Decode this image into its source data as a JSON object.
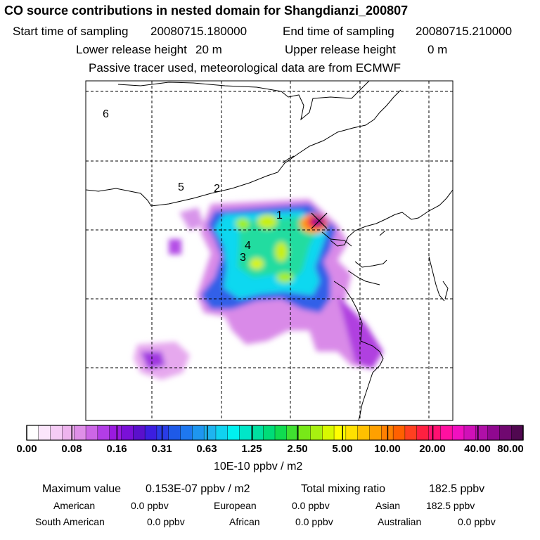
{
  "header": {
    "title": "CO  source contributions in nested domain for Shangdianzi_200807",
    "start_label": "Start time of sampling",
    "start_value": "20080715.180000",
    "end_label": "End time of sampling",
    "end_value": "20080715.210000",
    "lower_label": "Lower release height",
    "lower_value": "20 m",
    "upper_label": "Upper release height",
    "upper_value": "0 m",
    "note": "Passive tracer used, meteorological data are from ECMWF"
  },
  "map": {
    "region_labels": [
      "1",
      "2",
      "3",
      "4",
      "5",
      "6"
    ],
    "receptor_marker": "x-marker-icon"
  },
  "colorbar": {
    "unit": "10E-10 ppbv / m2",
    "tick_labels": [
      "0.00",
      "0.08",
      "0.16",
      "0.31",
      "0.63",
      "1.25",
      "2.50",
      "5.00",
      "10.00",
      "20.00",
      "40.00",
      "80.00"
    ],
    "colors": [
      "#ffffff",
      "#fbe6fb",
      "#f5ccf5",
      "#eeb4ee",
      "#df8fe8",
      "#cc66e6",
      "#b23de6",
      "#9a1ae0",
      "#7a10d8",
      "#5a10cc",
      "#3c1ee0",
      "#2a3ce6",
      "#1e5ae8",
      "#1e78f0",
      "#1e96f0",
      "#1eb4f0",
      "#10d2f0",
      "#00f0f0",
      "#00e6c8",
      "#00e0a0",
      "#00dc78",
      "#10dc50",
      "#40e030",
      "#78e818",
      "#a8f010",
      "#d8f800",
      "#ffff00",
      "#ffe000",
      "#ffc000",
      "#ffa000",
      "#ff8000",
      "#ff6000",
      "#ff4020",
      "#ff2040",
      "#ff1070",
      "#ff10a0",
      "#f010c0",
      "#d010b8",
      "#b010a8",
      "#900890",
      "#700870",
      "#500850"
    ]
  },
  "stats": {
    "max_label": "Maximum value",
    "max_value": "0.153E-07 ppbv / m2",
    "total_label": "Total mixing ratio",
    "total_value": "182.5 ppbv",
    "american_label": "American",
    "american_value": "0.0 ppbv",
    "european_label": "European",
    "european_value": "0.0 ppbv",
    "asian_label": "Asian",
    "asian_value": "182.5 ppbv",
    "south_american_label": "South American",
    "south_american_value": "0.0 ppbv",
    "african_label": "African",
    "african_value": "0.0 ppbv",
    "australian_label": "Australian",
    "australian_value": "0.0 ppbv"
  }
}
